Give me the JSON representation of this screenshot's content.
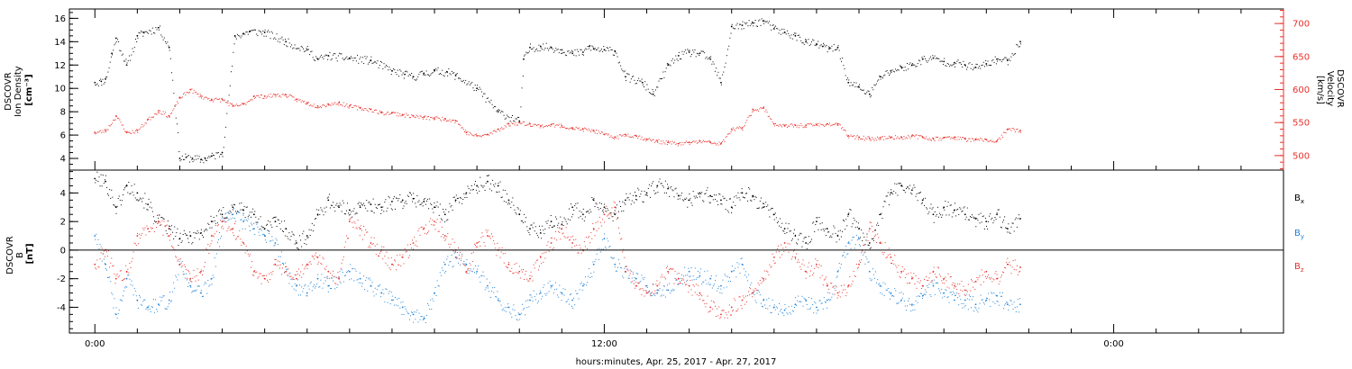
{
  "chart_data": [
    {
      "type": "scatter",
      "panel": "ion-density-velocity",
      "ylabel_lines": [
        "DSCOVR",
        "Ion Density",
        "[cm⁻³]"
      ],
      "ylabel_right_lines": [
        "DSCOVR",
        "Velocity",
        "[km/s]"
      ],
      "ylim": [
        3,
        16.8
      ],
      "ylim_right": [
        478,
        722
      ],
      "yticks": [
        "4",
        "6",
        "8",
        "10",
        "12",
        "14",
        "16"
      ],
      "yticks_right": [
        "500",
        "550",
        "600",
        "650",
        "700"
      ],
      "colors": {
        "density": "#000000",
        "velocity": "#e8302a"
      },
      "series": [
        {
          "name": "density",
          "axis": "left",
          "x": [
            0.0,
            0.3,
            0.5,
            0.8,
            1.0,
            1.5,
            2.0,
            2.3,
            3.0,
            3.5,
            4.0,
            4.3,
            4.6,
            5.0,
            5.2,
            5.5,
            6.0,
            6.6,
            7.0,
            7.3,
            8.0,
            9.0,
            10.0,
            10.5,
            11.0,
            12.0,
            13.0,
            14.0,
            14.6,
            15.0,
            15.5,
            16.0,
            16.6,
            17.0,
            18.0,
            19.0,
            20.0,
            20.2,
            20.5,
            21.0,
            21.5,
            22.0,
            22.5,
            23.0,
            23.3,
            23.5,
            24.0,
            24.5,
            25.0,
            25.8,
            26.3,
            27.0,
            27.5,
            28.0,
            28.5,
            29.0,
            29.5,
            30.0,
            30.5,
            31.0,
            31.5,
            32.0,
            32.5,
            33.0,
            33.5,
            34.0,
            34.3,
            34.6,
            35.0,
            35.5,
            36.0,
            36.5,
            37.0,
            37.5,
            38.0,
            38.5,
            39.0,
            39.5,
            40.0,
            40.5,
            41.0,
            41.5,
            42.0,
            42.5,
            43.0,
            43.6
          ],
          "y": [
            10.5,
            10.6,
            10.8,
            13.0,
            14.3,
            12.0,
            14.5,
            14.8,
            15.2,
            13.5,
            4.0,
            4.1,
            4.0,
            3.9,
            4.0,
            4.2,
            4.5,
            14.5,
            14.7,
            14.9,
            14.8,
            14.0,
            13.3,
            12.5,
            12.8,
            12.6,
            12.4,
            11.5,
            11.2,
            11.0,
            11.3,
            11.5,
            11.4,
            11.1,
            10.0,
            8.0,
            7.2,
            12.5,
            13.5,
            13.6,
            13.5,
            13.3,
            13.0,
            13.1,
            13.6,
            13.4,
            13.3,
            13.2,
            11.0,
            10.5,
            9.5,
            12.0,
            12.8,
            13.1,
            13.0,
            12.5,
            10.5,
            15.3,
            15.4,
            15.6,
            15.8,
            15.1,
            14.8,
            14.5,
            14.0,
            13.8,
            13.6,
            13.4,
            13.5,
            10.5,
            10.1,
            9.5,
            11.0,
            11.5,
            11.8,
            12.0,
            12.5,
            12.6,
            12.3,
            12.2,
            12.0,
            11.8,
            12.1,
            12.5,
            12.4,
            14.0
          ]
        },
        {
          "name": "velocity",
          "axis": "right",
          "x": [
            0.0,
            0.5,
            1.0,
            1.5,
            2.0,
            2.5,
            3.0,
            3.5,
            4.0,
            4.5,
            5.0,
            5.5,
            6.0,
            6.5,
            7.0,
            7.5,
            8.0,
            8.5,
            9.0,
            9.5,
            10.0,
            10.5,
            11.0,
            11.5,
            12.0,
            12.5,
            13.0,
            13.5,
            14.0,
            14.5,
            15.0,
            15.5,
            16.0,
            16.5,
            17.0,
            17.5,
            18.0,
            18.5,
            19.0,
            19.5,
            20.0,
            20.5,
            21.0,
            21.5,
            22.0,
            22.5,
            23.0,
            23.5,
            24.0,
            24.5,
            25.0,
            25.5,
            26.0,
            26.5,
            27.0,
            27.5,
            28.0,
            28.5,
            29.0,
            29.5,
            30.0,
            30.5,
            31.0,
            31.5,
            32.0,
            32.5,
            33.0,
            33.5,
            34.0,
            34.5,
            35.0,
            35.5,
            36.0,
            36.5,
            37.0,
            37.5,
            38.0,
            38.5,
            39.0,
            39.5,
            40.0,
            40.5,
            41.0,
            41.5,
            42.0,
            42.5,
            43.0,
            43.6
          ],
          "y": [
            535,
            538,
            560,
            535,
            538,
            555,
            568,
            560,
            588,
            600,
            590,
            585,
            585,
            575,
            578,
            590,
            590,
            592,
            592,
            585,
            580,
            575,
            578,
            580,
            575,
            572,
            570,
            565,
            565,
            562,
            560,
            558,
            557,
            556,
            553,
            535,
            530,
            532,
            540,
            548,
            550,
            548,
            545,
            547,
            545,
            542,
            540,
            538,
            532,
            528,
            532,
            530,
            525,
            522,
            520,
            518,
            520,
            522,
            520,
            518,
            540,
            542,
            570,
            572,
            548,
            545,
            546,
            546,
            547,
            548,
            548,
            530,
            528,
            526,
            527,
            528,
            528,
            530,
            528,
            526,
            527,
            528,
            525,
            524,
            524,
            522,
            540,
            538
          ]
        }
      ]
    },
    {
      "type": "scatter",
      "panel": "magnetic-field",
      "ylabel_lines": [
        "DSCOVR",
        "B",
        "[nT]"
      ],
      "ylim": [
        -5.8,
        5.6
      ],
      "yticks": [
        "-4",
        "-2",
        "0",
        "2",
        "4"
      ],
      "legend_placement": "right",
      "zero_line": true,
      "colors": {
        "Bx": "#000000",
        "By": "#1f83d8",
        "Bz": "#e8302a"
      },
      "series": [
        {
          "name": "Bx",
          "label_base": "B",
          "label_sub": "x",
          "x": [
            0.0,
            0.5,
            1.0,
            1.5,
            2.0,
            2.5,
            3.0,
            3.5,
            4.0,
            4.5,
            5.0,
            5.5,
            6.0,
            6.5,
            7.0,
            7.5,
            8.0,
            8.5,
            9.0,
            9.5,
            10.0,
            10.5,
            11.0,
            11.5,
            12.0,
            12.5,
            13.0,
            13.5,
            14.0,
            14.5,
            15.0,
            15.5,
            16.0,
            16.5,
            17.0,
            17.5,
            18.0,
            18.5,
            19.0,
            19.5,
            20.0,
            20.5,
            21.0,
            21.5,
            22.0,
            22.5,
            23.0,
            23.5,
            24.0,
            24.5,
            25.0,
            25.5,
            26.0,
            26.5,
            27.0,
            27.5,
            28.0,
            28.5,
            29.0,
            29.5,
            30.0,
            30.5,
            31.0,
            31.5,
            32.0,
            32.5,
            33.0,
            33.5,
            34.0,
            34.5,
            35.0,
            35.5,
            36.0,
            36.5,
            37.0,
            37.5,
            38.0,
            38.5,
            39.0,
            39.5,
            40.0,
            40.5,
            41.0,
            41.5,
            42.0,
            42.5,
            43.0,
            43.6
          ],
          "y": [
            5.0,
            4.8,
            3.0,
            4.5,
            4.0,
            3.2,
            2.0,
            1.5,
            0.8,
            1.0,
            1.2,
            2.0,
            2.5,
            3.0,
            2.8,
            2.5,
            1.5,
            2.0,
            1.5,
            0.5,
            1.0,
            2.5,
            3.5,
            3.0,
            2.8,
            3.0,
            3.2,
            3.0,
            3.4,
            3.5,
            3.6,
            3.4,
            3.0,
            2.5,
            3.5,
            4.0,
            4.5,
            4.8,
            4.5,
            3.5,
            2.5,
            1.5,
            1.2,
            2.0,
            1.8,
            3.0,
            2.5,
            3.5,
            3.0,
            2.5,
            3.5,
            3.8,
            4.0,
            4.5,
            4.3,
            3.8,
            3.5,
            4.0,
            3.8,
            3.5,
            3.0,
            4.0,
            3.8,
            3.0,
            2.5,
            1.5,
            1.0,
            0.5,
            2.0,
            1.5,
            1.0,
            2.5,
            1.5,
            0.5,
            2.5,
            4.0,
            4.5,
            4.2,
            3.5,
            2.5,
            3.0,
            2.8,
            2.5,
            2.2,
            2.0,
            2.5,
            1.5,
            2.2
          ]
        },
        {
          "name": "By",
          "label_base": "B",
          "label_sub": "y",
          "x": [
            0.0,
            0.5,
            1.0,
            1.5,
            2.0,
            2.5,
            3.0,
            3.5,
            4.0,
            4.5,
            5.0,
            5.5,
            6.0,
            6.5,
            7.0,
            7.5,
            8.0,
            8.5,
            9.0,
            9.5,
            10.0,
            10.5,
            11.0,
            11.5,
            12.0,
            12.5,
            13.0,
            13.5,
            14.0,
            14.5,
            15.0,
            15.5,
            16.0,
            16.5,
            17.0,
            17.5,
            18.0,
            18.5,
            19.0,
            19.5,
            20.0,
            20.5,
            21.0,
            21.5,
            22.0,
            22.5,
            23.0,
            23.5,
            24.0,
            24.5,
            25.0,
            25.5,
            26.0,
            26.5,
            27.0,
            27.5,
            28.0,
            28.5,
            29.0,
            29.5,
            30.0,
            30.5,
            31.0,
            31.5,
            32.0,
            32.5,
            33.0,
            33.5,
            34.0,
            34.5,
            35.0,
            35.5,
            36.0,
            36.5,
            37.0,
            37.5,
            38.0,
            38.5,
            39.0,
            39.5,
            40.0,
            40.5,
            41.0,
            41.5,
            42.0,
            42.5,
            43.0,
            43.6
          ],
          "y": [
            1.0,
            -1.0,
            -4.5,
            -2.0,
            -3.5,
            -4.0,
            -3.8,
            -3.5,
            -1.0,
            -2.5,
            -3.0,
            -2.0,
            2.0,
            2.5,
            2.0,
            1.5,
            1.0,
            0.5,
            -1.5,
            -2.5,
            -3.0,
            -2.0,
            -2.5,
            -2.0,
            -1.5,
            -2.0,
            -2.5,
            -3.0,
            -3.5,
            -4.0,
            -4.5,
            -4.8,
            -3.0,
            -1.0,
            -0.5,
            -1.0,
            -1.5,
            -2.5,
            -3.5,
            -4.0,
            -4.5,
            -3.5,
            -3.0,
            -2.5,
            -3.0,
            -3.5,
            -2.5,
            -1.0,
            0.8,
            -1.0,
            -1.5,
            -2.0,
            -2.5,
            -3.0,
            -2.8,
            -2.0,
            -1.5,
            -1.8,
            -2.0,
            -2.5,
            -1.5,
            -1.0,
            -3.0,
            -3.5,
            -4.0,
            -4.2,
            -3.8,
            -3.5,
            -4.0,
            -3.5,
            -1.5,
            0.5,
            0.8,
            -1.5,
            -2.5,
            -3.0,
            -3.5,
            -3.8,
            -3.2,
            -2.5,
            -3.0,
            -3.5,
            -3.5,
            -3.8,
            -3.5,
            -3.2,
            -3.8,
            -3.8
          ]
        },
        {
          "name": "Bz",
          "label_base": "B",
          "label_sub": "z",
          "x": [
            0.0,
            0.5,
            1.0,
            1.5,
            2.0,
            2.5,
            3.0,
            3.5,
            4.0,
            4.5,
            5.0,
            5.5,
            6.0,
            6.5,
            7.0,
            7.5,
            8.0,
            8.5,
            9.0,
            9.5,
            10.0,
            10.5,
            11.0,
            11.5,
            12.0,
            12.5,
            13.0,
            13.5,
            14.0,
            14.5,
            15.0,
            15.5,
            16.0,
            16.5,
            17.0,
            17.5,
            18.0,
            18.5,
            19.0,
            19.5,
            20.0,
            20.5,
            21.0,
            21.5,
            22.0,
            22.5,
            23.0,
            23.5,
            24.0,
            24.5,
            25.0,
            25.5,
            26.0,
            26.5,
            27.0,
            27.5,
            28.0,
            28.5,
            29.0,
            29.5,
            30.0,
            30.5,
            31.0,
            31.5,
            32.0,
            32.5,
            33.0,
            33.5,
            34.0,
            34.5,
            35.0,
            35.5,
            36.0,
            36.5,
            37.0,
            37.5,
            38.0,
            38.5,
            39.0,
            39.5,
            40.0,
            40.5,
            41.0,
            41.5,
            42.0,
            42.5,
            43.0,
            43.6
          ],
          "y": [
            -1.0,
            0.0,
            -2.0,
            -1.5,
            1.0,
            1.5,
            2.0,
            1.0,
            -1.0,
            -2.0,
            -1.5,
            1.0,
            2.0,
            1.5,
            0.5,
            -1.5,
            -2.0,
            -1.0,
            -1.5,
            -2.0,
            -1.0,
            -0.5,
            -1.5,
            -2.0,
            2.0,
            1.5,
            0.5,
            0.0,
            -1.0,
            -0.5,
            0.5,
            1.5,
            2.0,
            1.0,
            0.0,
            -1.5,
            0.5,
            1.0,
            0.0,
            -1.0,
            -1.5,
            -2.0,
            -0.5,
            0.5,
            1.5,
            0.5,
            0.0,
            1.5,
            2.5,
            3.0,
            -1.5,
            -2.5,
            -3.0,
            -2.5,
            -1.5,
            -2.0,
            -2.5,
            -3.0,
            -4.0,
            -4.5,
            -4.0,
            -3.5,
            -3.0,
            -2.0,
            -0.5,
            0.5,
            -0.5,
            -1.5,
            -1.0,
            -2.5,
            -3.0,
            -2.5,
            -1.0,
            1.5,
            0.5,
            -0.5,
            -1.5,
            -2.0,
            -2.5,
            -1.5,
            -2.0,
            -2.5,
            -2.8,
            -2.2,
            -1.5,
            -2.0,
            -1.0,
            -1.2
          ]
        }
      ]
    }
  ],
  "xaxis": {
    "xlim": [
      -1.2,
      56.0
    ],
    "ticks": [
      {
        "x": 0,
        "label": "0:00"
      },
      {
        "x": 24,
        "label": "12:00"
      },
      {
        "x": 48,
        "label": "0:00"
      }
    ],
    "xlabel": "hours:minutes, Apr. 25, 2017 - Apr. 27, 2017"
  }
}
